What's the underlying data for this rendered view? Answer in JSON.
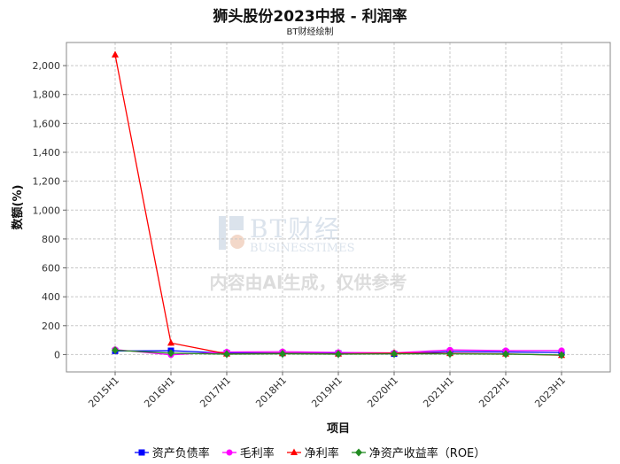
{
  "chart_data": {
    "type": "line",
    "title": "狮头股份2023中报 - 利润率",
    "subtitle": "BT财经绘制",
    "xlabel": "项目",
    "ylabel": "数额(%)",
    "categories": [
      "2015H1",
      "2016H1",
      "2017H1",
      "2018H1",
      "2019H1",
      "2020H1",
      "2021H1",
      "2022H1",
      "2023H1"
    ],
    "ylim": [
      -120,
      2160
    ],
    "yticks": [
      0,
      200,
      400,
      600,
      800,
      1000,
      1200,
      1400,
      1600,
      1800,
      2000
    ],
    "ytick_labels": [
      "0",
      "200",
      "400",
      "600",
      "800",
      "1,000",
      "1,200",
      "1,400",
      "1,600",
      "1,800",
      "2,000"
    ],
    "grid": true,
    "legend_position": "bottom",
    "series": [
      {
        "name": "资产负债率",
        "color": "#0000ff",
        "marker": "square",
        "values": [
          25,
          27,
          10,
          10,
          8,
          5,
          20,
          18,
          14
        ]
      },
      {
        "name": "毛利率",
        "color": "#ff00ff",
        "marker": "circle",
        "values": [
          35,
          -2,
          18,
          20,
          15,
          12,
          32,
          28,
          28
        ]
      },
      {
        "name": "净利率",
        "color": "#ff0000",
        "marker": "triangle",
        "values": [
          2075,
          80,
          5,
          8,
          5,
          10,
          8,
          5,
          -5
        ]
      },
      {
        "name": "净资产收益率（ROE）",
        "color": "#228b22",
        "marker": "diamond",
        "values": [
          30,
          10,
          3,
          5,
          3,
          5,
          5,
          3,
          -3
        ]
      }
    ]
  },
  "watermark": {
    "brand": "BT财经",
    "brand_en": "BUSINESSTIMES",
    "disclaimer": "内容由AI生成，仅供参考"
  }
}
